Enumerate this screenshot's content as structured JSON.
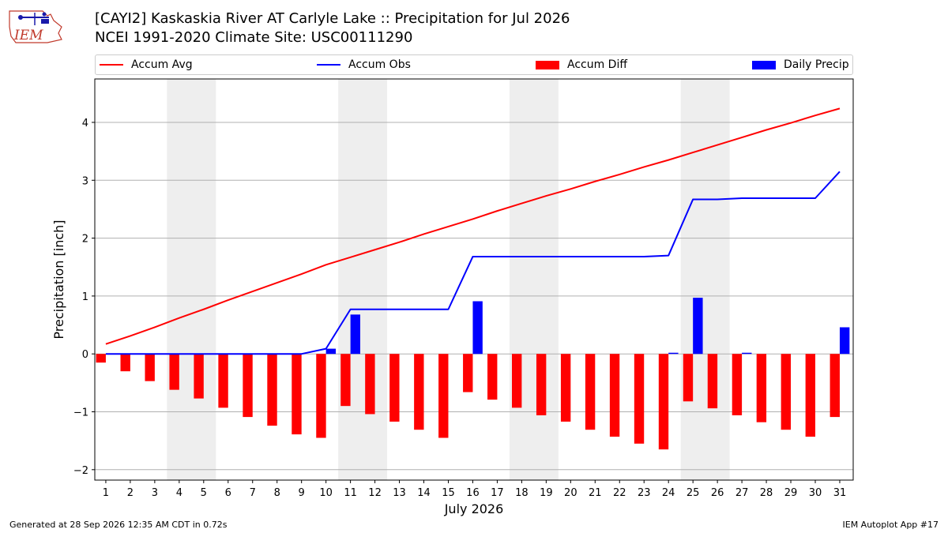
{
  "header": {
    "title_line1": "[CAYI2] Kaskaskia River  AT Carlyle Lake :: Precipitation for Jul 2026",
    "title_line2": "NCEI 1991-2020 Climate Site: USC00111290",
    "logo_text": "IEM"
  },
  "footer": {
    "generated": "Generated at 28 Sep 2026 12:35 AM CDT in 0.72s",
    "app": "IEM Autoplot App #17"
  },
  "colors": {
    "avg": "#ff0000",
    "obs": "#0000ff",
    "diff": "#ff0000",
    "daily": "#0000ff",
    "weekend_shade": "#eeeeee"
  },
  "chart_data": {
    "type": "bar",
    "xlabel": "July 2026",
    "ylabel": "Precipitation [inch]",
    "ylim": [
      -2.18,
      4.75
    ],
    "yticks": [
      -2,
      -1,
      0,
      1,
      2,
      3,
      4
    ],
    "ytick_labels": [
      "−2",
      "−1",
      "0",
      "1",
      "2",
      "3",
      "4"
    ],
    "grid": true,
    "legend_placement": "top",
    "days": [
      1,
      2,
      3,
      4,
      5,
      6,
      7,
      8,
      9,
      10,
      11,
      12,
      13,
      14,
      15,
      16,
      17,
      18,
      19,
      20,
      21,
      22,
      23,
      24,
      25,
      26,
      27,
      28,
      29,
      30,
      31
    ],
    "x_labels": [
      "1",
      "2",
      "3",
      "4",
      "5",
      "6",
      "7",
      "8",
      "9",
      "10",
      "11",
      "12",
      "13",
      "14",
      "15",
      "16",
      "17",
      "18",
      "19",
      "20",
      "21",
      "22",
      "23",
      "24",
      "25",
      "26",
      "27",
      "28",
      "29",
      "30",
      "31"
    ],
    "shaded_day_pairs": [
      [
        4,
        5
      ],
      [
        11,
        12
      ],
      [
        18,
        19
      ],
      [
        25,
        26
      ]
    ],
    "series": [
      {
        "name": "Accum Avg",
        "kind": "line",
        "values": [
          0.17,
          0.31,
          0.46,
          0.62,
          0.77,
          0.93,
          1.08,
          1.23,
          1.38,
          1.54,
          1.67,
          1.8,
          1.93,
          2.07,
          2.2,
          2.33,
          2.47,
          2.6,
          2.73,
          2.85,
          2.98,
          3.1,
          3.23,
          3.35,
          3.48,
          3.61,
          3.74,
          3.87,
          3.99,
          4.12,
          4.24
        ]
      },
      {
        "name": "Accum Obs",
        "kind": "line",
        "values": [
          0,
          0,
          0,
          0,
          0,
          0,
          0,
          0,
          0,
          0.09,
          0.77,
          0.77,
          0.77,
          0.77,
          0.77,
          1.68,
          1.68,
          1.68,
          1.68,
          1.68,
          1.68,
          1.68,
          1.68,
          1.7,
          2.67,
          2.67,
          2.69,
          2.69,
          2.69,
          2.69,
          3.15
        ]
      },
      {
        "name": "Accum Diff",
        "kind": "bar",
        "values": [
          -0.15,
          -0.3,
          -0.47,
          -0.62,
          -0.77,
          -0.93,
          -1.09,
          -1.24,
          -1.39,
          -1.45,
          -0.9,
          -1.04,
          -1.17,
          -1.31,
          -1.45,
          -0.66,
          -0.79,
          -0.93,
          -1.06,
          -1.17,
          -1.31,
          -1.43,
          -1.55,
          -1.65,
          -0.82,
          -0.94,
          -1.06,
          -1.18,
          -1.31,
          -1.43,
          -1.09
        ]
      },
      {
        "name": "Daily Precip",
        "kind": "bar",
        "values": [
          0,
          0,
          0,
          0,
          0,
          0,
          0,
          0,
          0,
          0.09,
          0.68,
          0,
          0,
          0,
          0,
          0.91,
          0,
          0,
          0,
          0,
          0,
          0,
          0,
          0.02,
          0.97,
          0,
          0.02,
          0,
          0,
          0,
          0.46
        ]
      }
    ]
  }
}
